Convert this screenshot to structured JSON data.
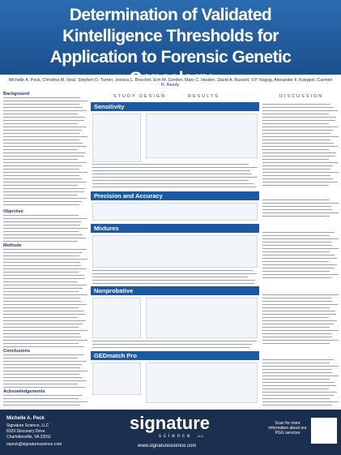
{
  "header": {
    "title": "Determination of Validated Kintelligence Thresholds for Application to Forensic Genetic Genealogy",
    "authors": "Michelle A. Peck, Christina M. Neal, Stephen D. Turner, Jessica L. Bouchet, Erin M. Gorden, Mary C. Heaton, David A. Russell, V.P. Nagraj, Alexander F. Koeppel, Carmen R. Reedy."
  },
  "columns": [
    "STUDY DESIGN",
    "RESULTS",
    "DISCUSSION"
  ],
  "left_sections": [
    "Background",
    "Objective",
    "Methods",
    "Conclusions",
    "Acknowledgements"
  ],
  "sections": [
    "Sensitivity",
    "Precision and Accuracy",
    "Mixtures",
    "Nonprobative",
    "GEDmatch Pro"
  ],
  "footer": {
    "name": "Michelle A. Peck",
    "org": "Signature Science, LLC",
    "street": "8329 Discovery Drive",
    "city": "Charlottesville, VA 22911",
    "email": "mpeck@signaturescience.com",
    "logo": "signature",
    "logo_sub": "science",
    "logo_llc": "LLC",
    "url": "www.signaturescience.com",
    "scan": "Scan for more information about our PGG services"
  }
}
